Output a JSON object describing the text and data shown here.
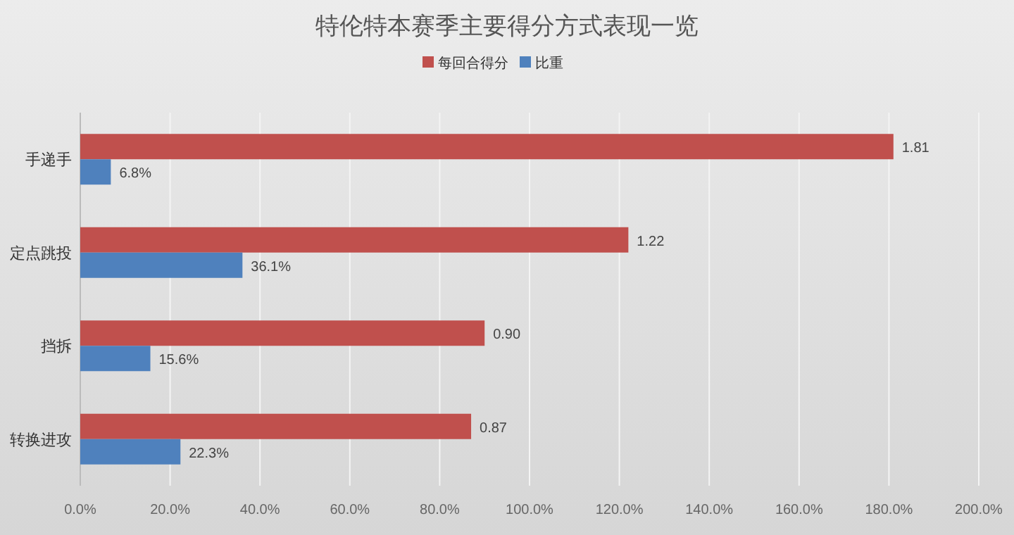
{
  "chart_data": {
    "type": "bar",
    "orientation": "horizontal",
    "title": "特伦特本赛季主要得分方式表现一览",
    "categories": [
      "手递手",
      "定点跳投",
      "挡拆",
      "转换进攻"
    ],
    "series": [
      {
        "name": "每回合得分",
        "color": "#c0504d",
        "values": [
          1.81,
          1.22,
          0.9,
          0.87
        ],
        "value_labels": [
          "1.81",
          "1.22",
          "0.90",
          "0.87"
        ]
      },
      {
        "name": "比重",
        "color": "#4f81bd",
        "values": [
          0.068,
          0.361,
          0.156,
          0.223
        ],
        "value_labels": [
          "6.8%",
          "36.1%",
          "15.6%",
          "22.3%"
        ]
      }
    ],
    "xlim": [
      0,
      2
    ],
    "xticks": [
      {
        "value": 0,
        "label": "0.0%"
      },
      {
        "value": 0.2,
        "label": "20.0%"
      },
      {
        "value": 0.4,
        "label": "40.0%"
      },
      {
        "value": 0.6,
        "label": "60.0%"
      },
      {
        "value": 0.8,
        "label": "80.0%"
      },
      {
        "value": 1.0,
        "label": "100.0%"
      },
      {
        "value": 1.2,
        "label": "120.0%"
      },
      {
        "value": 1.4,
        "label": "140.0%"
      },
      {
        "value": 1.6,
        "label": "160.0%"
      },
      {
        "value": 1.8,
        "label": "180.0%"
      },
      {
        "value": 2.0,
        "label": "200.0%"
      }
    ],
    "grid": "x",
    "legend": "top"
  }
}
